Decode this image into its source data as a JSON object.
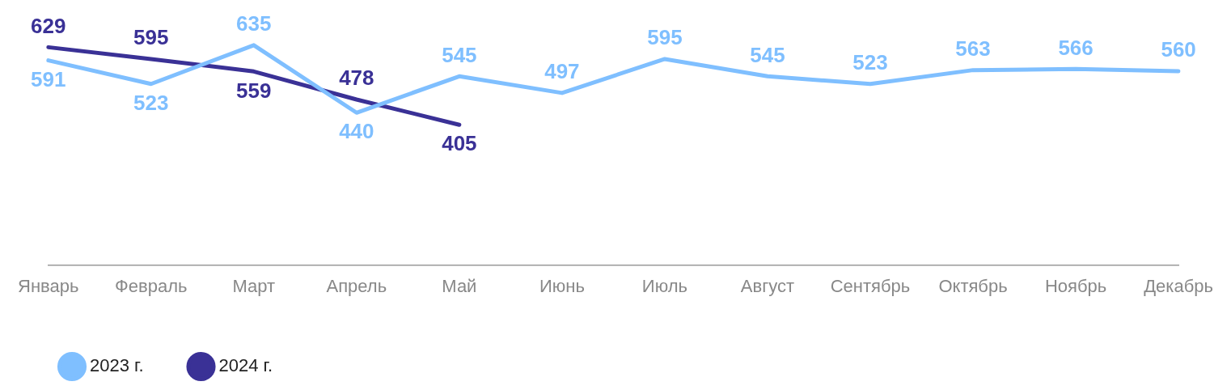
{
  "chart_data": {
    "type": "line",
    "categories": [
      "Январь",
      "Февраль",
      "Март",
      "Апрель",
      "Май",
      "Июнь",
      "Июль",
      "Август",
      "Сентябрь",
      "Октябрь",
      "Ноябрь",
      "Декабрь"
    ],
    "series": [
      {
        "name": "2023 г.",
        "color": "#7fbfff",
        "values": [
          591,
          523,
          635,
          440,
          545,
          497,
          595,
          545,
          523,
          563,
          566,
          560
        ]
      },
      {
        "name": "2024 г.",
        "color": "#3a3196",
        "values": [
          629,
          595,
          559,
          478,
          405,
          null,
          null,
          null,
          null,
          null,
          null,
          null
        ]
      }
    ],
    "data_labels": true,
    "grid": false,
    "legend": "bottom left",
    "marker": "none",
    "line_style": "solid"
  }
}
